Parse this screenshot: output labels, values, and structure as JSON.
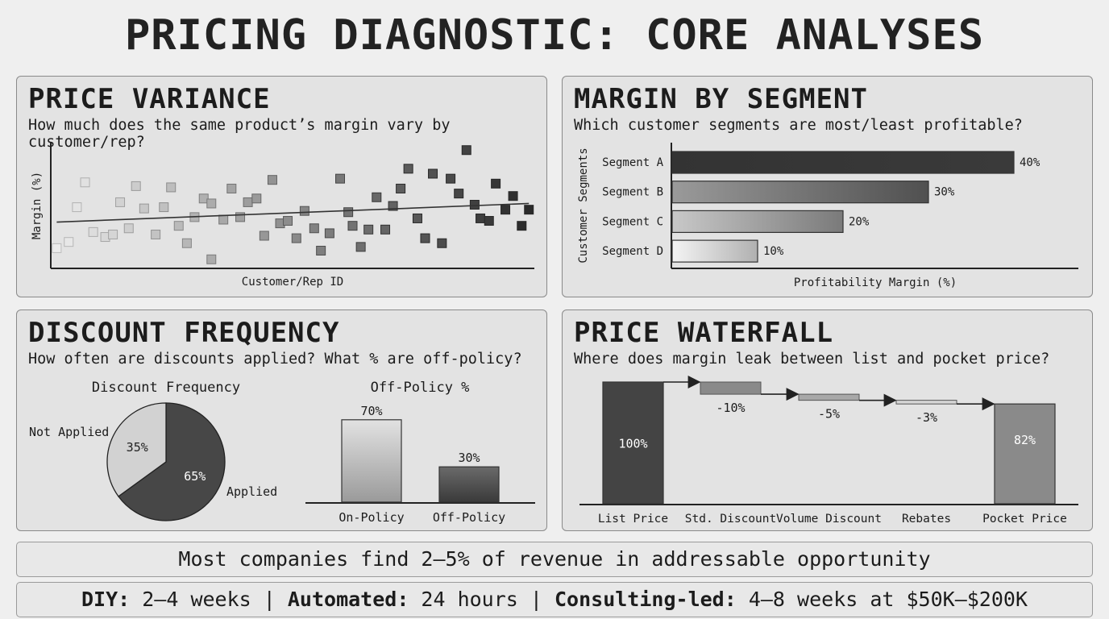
{
  "title": "PRICING DIAGNOSTIC: CORE ANALYSES",
  "panels": {
    "price_variance": {
      "title": "PRICE VARIANCE",
      "subtitle": "How much does the same product’s margin vary by customer/rep?"
    },
    "margin_by_segment": {
      "title": "MARGIN BY SEGMENT",
      "subtitle": "Which customer segments are most/least profitable?"
    },
    "discount_frequency": {
      "title": "DISCOUNT FREQUENCY",
      "subtitle": "How often are discounts applied? What % are off-policy?"
    },
    "price_waterfall": {
      "title": "PRICE WATERFALL",
      "subtitle": "Where does margin leak between list and pocket price?"
    }
  },
  "chart_data": [
    {
      "type": "scatter",
      "xlabel": "Customer/Rep ID",
      "ylabel": "Margin (%)",
      "xlim": [
        0,
        100
      ],
      "ylim": [
        0,
        100
      ],
      "points": [
        [
          0.9,
          15
        ],
        [
          3.4,
          20
        ],
        [
          5.1,
          48
        ],
        [
          6.8,
          68
        ],
        [
          8.5,
          28
        ],
        [
          11,
          24
        ],
        [
          12.6,
          26
        ],
        [
          14.1,
          52
        ],
        [
          15.9,
          31
        ],
        [
          17.4,
          65
        ],
        [
          19.1,
          47
        ],
        [
          21.5,
          26
        ],
        [
          23.2,
          48
        ],
        [
          24.7,
          64
        ],
        [
          26.3,
          33
        ],
        [
          28,
          19
        ],
        [
          29.6,
          40
        ],
        [
          31.5,
          55
        ],
        [
          33.1,
          51
        ],
        [
          33.1,
          6
        ],
        [
          35.6,
          38
        ],
        [
          37.3,
          63
        ],
        [
          39.1,
          40
        ],
        [
          40.7,
          52
        ],
        [
          42.5,
          55
        ],
        [
          44.1,
          25
        ],
        [
          45.8,
          70
        ],
        [
          47.4,
          35
        ],
        [
          49,
          37
        ],
        [
          50.8,
          23
        ],
        [
          52.5,
          45
        ],
        [
          54.5,
          31
        ],
        [
          55.9,
          13
        ],
        [
          57.7,
          27
        ],
        [
          59.9,
          71
        ],
        [
          61.6,
          44
        ],
        [
          62.5,
          33
        ],
        [
          64.2,
          16
        ],
        [
          65.8,
          30
        ],
        [
          67.5,
          56
        ],
        [
          69.3,
          30
        ],
        [
          70.9,
          49
        ],
        [
          72.5,
          63
        ],
        [
          74.1,
          79
        ],
        [
          76,
          39
        ],
        [
          77.6,
          23
        ],
        [
          79.2,
          75
        ],
        [
          81.1,
          19
        ],
        [
          82.9,
          71
        ],
        [
          84.6,
          59
        ],
        [
          86.2,
          94
        ],
        [
          87.9,
          50
        ],
        [
          89.1,
          39
        ],
        [
          90.9,
          37
        ],
        [
          92.3,
          67
        ],
        [
          94.3,
          46
        ],
        [
          95.9,
          57
        ],
        [
          97.7,
          33
        ],
        [
          99.2,
          46
        ]
      ],
      "trendline": [
        [
          0.9,
          36
        ],
        [
          99.2,
          51
        ]
      ]
    },
    {
      "type": "bar",
      "orientation": "horizontal",
      "xlabel": "Profitability Margin (%)",
      "ylabel": "Customer Segments",
      "categories": [
        "Segment A",
        "Segment B",
        "Segment C",
        "Segment D"
      ],
      "values": [
        40,
        30,
        20,
        10
      ],
      "labels": [
        "40%",
        "30%",
        "20%",
        "10%"
      ]
    },
    {
      "type": "pie",
      "title": "Discount Frequency",
      "slices": [
        {
          "name": "Applied",
          "value": 65,
          "label": "65%",
          "color": "#474747"
        },
        {
          "name": "Not Applied",
          "value": 35,
          "label": "35%",
          "color": "#d2d2d2"
        }
      ]
    },
    {
      "type": "bar",
      "title": "Off-Policy %",
      "categories": [
        "On-Policy",
        "Off-Policy"
      ],
      "values": [
        70,
        30
      ],
      "labels": [
        "70%",
        "30%"
      ]
    },
    {
      "type": "bar",
      "subtype": "waterfall",
      "categories": [
        "List Price",
        "Std. Discount",
        "Volume Discount",
        "Rebates",
        "Pocket Price"
      ],
      "values": [
        100,
        -10,
        -5,
        -3,
        82
      ],
      "labels": [
        "100%",
        "-10%",
        "-5%",
        "-3%",
        "82%"
      ]
    }
  ],
  "banner1": {
    "text": "Most companies find 2–5% of revenue in addressable opportunity"
  },
  "banner2": {
    "diy_label": "DIY:",
    "diy_value": " 2–4 weeks | ",
    "auto_label": "Automated:",
    "auto_value": " 24 hours | ",
    "consult_label": "Consulting-led:",
    "consult_value": " 4–8 weeks at $50K–$200K"
  }
}
